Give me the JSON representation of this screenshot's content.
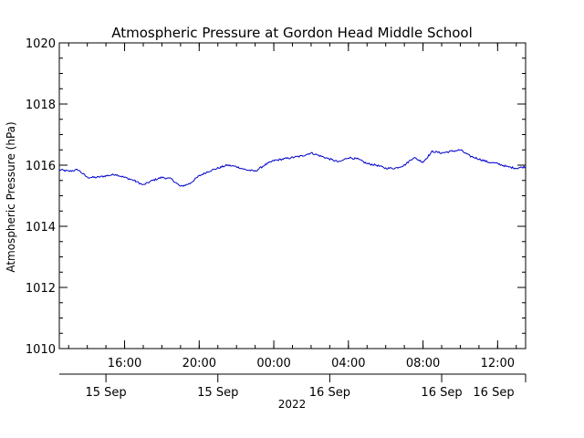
{
  "chart_data": {
    "type": "line",
    "title": "Atmospheric Pressure at Gordon Head Middle School",
    "ylabel": "Atmospheric Pressure (hPa)",
    "xlabel": "2022",
    "ylim": [
      1010,
      1020
    ],
    "yticks": [
      "1010",
      "1012",
      "1014",
      "1016",
      "1018",
      "1020"
    ],
    "xlim": [
      "2022-09-15 12:30",
      "2022-09-16 13:30"
    ],
    "time_ticks": [
      {
        "x": "2022-09-15 16:00",
        "label": "16:00"
      },
      {
        "x": "2022-09-15 20:00",
        "label": "20:00"
      },
      {
        "x": "2022-09-16 00:00",
        "label": "00:00"
      },
      {
        "x": "2022-09-16 04:00",
        "label": "04:00"
      },
      {
        "x": "2022-09-16 08:00",
        "label": "08:00"
      },
      {
        "x": "2022-09-16 12:00",
        "label": "12:00"
      }
    ],
    "date_ticks": [
      {
        "x": "2022-09-15 15:00",
        "label": "15 Sep"
      },
      {
        "x": "2022-09-15 21:00",
        "label": "15 Sep"
      },
      {
        "x": "2022-09-16 03:00",
        "label": "16 Sep"
      },
      {
        "x": "2022-09-16 09:00",
        "label": "16 Sep"
      },
      {
        "x": "2022-09-16 13:30",
        "label": "16 Sep"
      }
    ],
    "grid": false,
    "series": [
      {
        "color": "#0000cc",
        "x": [
          "2022-09-15 12:30",
          "2022-09-15 13:00",
          "2022-09-15 13:30",
          "2022-09-15 14:00",
          "2022-09-15 14:30",
          "2022-09-15 15:00",
          "2022-09-15 15:30",
          "2022-09-15 16:00",
          "2022-09-15 16:30",
          "2022-09-15 17:00",
          "2022-09-15 17:30",
          "2022-09-15 18:00",
          "2022-09-15 18:30",
          "2022-09-15 19:00",
          "2022-09-15 19:30",
          "2022-09-15 20:00",
          "2022-09-15 20:30",
          "2022-09-15 21:00",
          "2022-09-15 21:30",
          "2022-09-15 22:00",
          "2022-09-15 22:30",
          "2022-09-15 23:00",
          "2022-09-15 23:30",
          "2022-09-16 00:00",
          "2022-09-16 00:30",
          "2022-09-16 01:00",
          "2022-09-16 01:30",
          "2022-09-16 02:00",
          "2022-09-16 02:30",
          "2022-09-16 03:00",
          "2022-09-16 03:30",
          "2022-09-16 04:00",
          "2022-09-16 04:30",
          "2022-09-16 05:00",
          "2022-09-16 05:30",
          "2022-09-16 06:00",
          "2022-09-16 06:30",
          "2022-09-16 07:00",
          "2022-09-16 07:30",
          "2022-09-16 08:00",
          "2022-09-16 08:30",
          "2022-09-16 09:00",
          "2022-09-16 09:30",
          "2022-09-16 10:00",
          "2022-09-16 10:30",
          "2022-09-16 11:00",
          "2022-09-16 11:30",
          "2022-09-16 12:00",
          "2022-09-16 12:30",
          "2022-09-16 13:00",
          "2022-09-16 13:30"
        ],
        "values": [
          1015.85,
          1015.8,
          1015.85,
          1015.6,
          1015.6,
          1015.65,
          1015.7,
          1015.6,
          1015.5,
          1015.35,
          1015.5,
          1015.6,
          1015.55,
          1015.3,
          1015.4,
          1015.65,
          1015.8,
          1015.9,
          1016.0,
          1015.95,
          1015.85,
          1015.8,
          1016.0,
          1016.15,
          1016.2,
          1016.25,
          1016.3,
          1016.4,
          1016.3,
          1016.2,
          1016.1,
          1016.25,
          1016.2,
          1016.05,
          1016.0,
          1015.9,
          1015.9,
          1016.0,
          1016.25,
          1016.1,
          1016.45,
          1016.4,
          1016.45,
          1016.5,
          1016.3,
          1016.2,
          1016.1,
          1016.05,
          1015.95,
          1015.9,
          1015.95
        ]
      }
    ]
  }
}
